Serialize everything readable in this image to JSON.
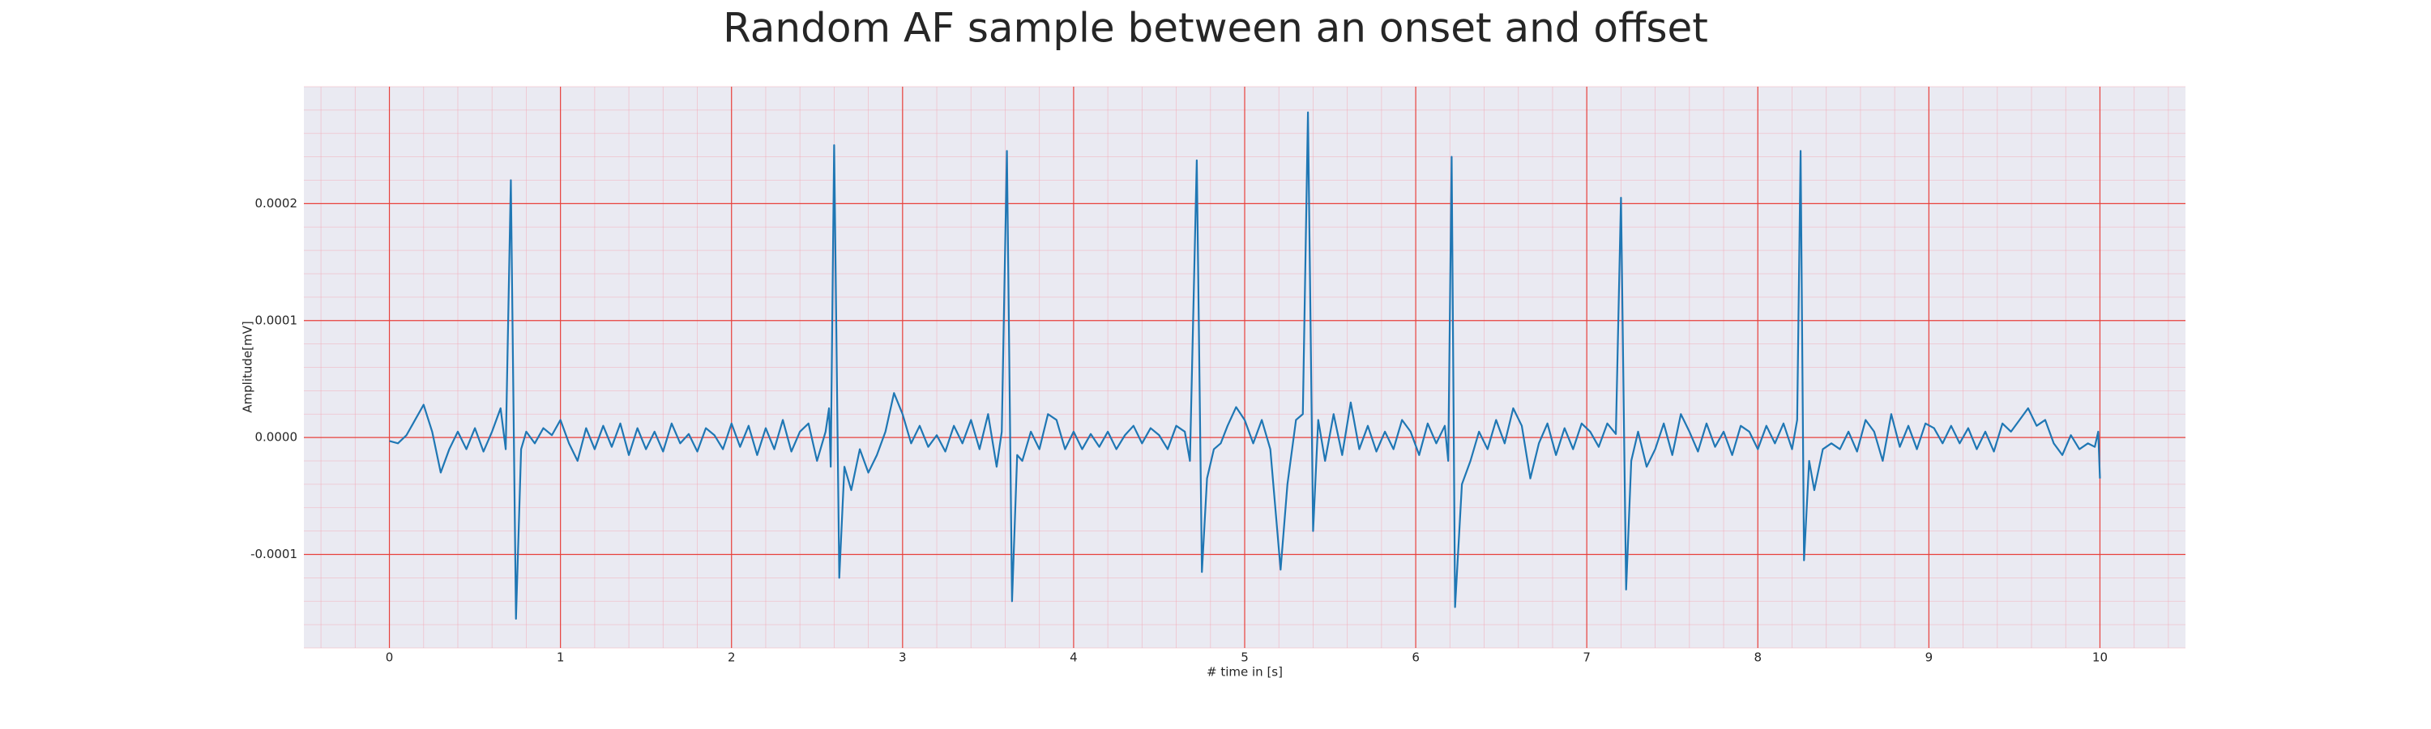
{
  "chart_data": {
    "type": "line",
    "title": "Random AF sample between an onset and offset",
    "xlabel": "# time in [s]",
    "ylabel": "Amplitude[mV]",
    "color": "#1f77b4",
    "grid": true,
    "x": [
      0.0,
      0.05,
      0.1,
      0.15,
      0.2,
      0.25,
      0.3,
      0.35,
      0.4,
      0.45,
      0.5,
      0.55,
      0.6,
      0.65,
      0.68,
      0.71,
      0.74,
      0.77,
      0.8,
      0.85,
      0.9,
      0.95,
      1.0,
      1.05,
      1.1,
      1.15,
      1.2,
      1.25,
      1.3,
      1.35,
      1.4,
      1.45,
      1.5,
      1.55,
      1.6,
      1.65,
      1.7,
      1.75,
      1.8,
      1.85,
      1.9,
      1.95,
      2.0,
      2.05,
      2.1,
      2.15,
      2.2,
      2.25,
      2.3,
      2.35,
      2.4,
      2.45,
      2.5,
      2.55,
      2.57,
      2.58,
      2.6,
      2.63,
      2.66,
      2.7,
      2.75,
      2.8,
      2.85,
      2.9,
      2.95,
      3.0,
      3.05,
      3.1,
      3.15,
      3.2,
      3.25,
      3.3,
      3.35,
      3.4,
      3.45,
      3.5,
      3.55,
      3.58,
      3.61,
      3.64,
      3.67,
      3.7,
      3.75,
      3.8,
      3.85,
      3.9,
      3.95,
      4.0,
      4.05,
      4.1,
      4.15,
      4.2,
      4.25,
      4.3,
      4.35,
      4.4,
      4.45,
      4.5,
      4.55,
      4.6,
      4.65,
      4.68,
      4.72,
      4.75,
      4.78,
      4.82,
      4.86,
      4.9,
      4.95,
      5.0,
      5.05,
      5.1,
      5.15,
      5.21,
      5.25,
      5.3,
      5.34,
      5.37,
      5.4,
      5.43,
      5.47,
      5.52,
      5.57,
      5.62,
      5.67,
      5.72,
      5.77,
      5.82,
      5.87,
      5.92,
      5.97,
      6.02,
      6.07,
      6.12,
      6.17,
      6.19,
      6.21,
      6.23,
      6.27,
      6.32,
      6.37,
      6.42,
      6.47,
      6.52,
      6.57,
      6.62,
      6.67,
      6.72,
      6.77,
      6.82,
      6.87,
      6.92,
      6.97,
      7.02,
      7.07,
      7.12,
      7.17,
      7.2,
      7.23,
      7.26,
      7.3,
      7.35,
      7.4,
      7.45,
      7.5,
      7.55,
      7.6,
      7.65,
      7.7,
      7.75,
      7.8,
      7.85,
      7.9,
      7.95,
      8.0,
      8.05,
      8.1,
      8.15,
      8.2,
      8.23,
      8.25,
      8.27,
      8.3,
      8.33,
      8.38,
      8.43,
      8.48,
      8.53,
      8.58,
      8.63,
      8.68,
      8.73,
      8.78,
      8.83,
      8.88,
      8.93,
      8.98,
      9.03,
      9.08,
      9.13,
      9.18,
      9.23,
      9.28,
      9.33,
      9.38,
      9.43,
      9.48,
      9.53,
      9.58,
      9.63,
      9.68,
      9.73,
      9.78,
      9.83,
      9.88,
      9.93,
      9.97,
      9.99,
      10.0
    ],
    "values": [
      -3e-06,
      -5e-06,
      2e-06,
      1.5e-05,
      2.8e-05,
      5e-06,
      -3e-05,
      -1e-05,
      5e-06,
      -1e-05,
      8e-06,
      -1.2e-05,
      5e-06,
      2.5e-05,
      -1e-05,
      0.00022,
      -0.000155,
      -1e-05,
      5e-06,
      -5e-06,
      8e-06,
      2e-06,
      1.5e-05,
      -5e-06,
      -2e-05,
      8e-06,
      -1e-05,
      1e-05,
      -8e-06,
      1.2e-05,
      -1.5e-05,
      8e-06,
      -1e-05,
      5e-06,
      -1.2e-05,
      1.2e-05,
      -5e-06,
      3e-06,
      -1.2e-05,
      8e-06,
      2e-06,
      -1e-05,
      1.2e-05,
      -8e-06,
      1e-05,
      -1.5e-05,
      8e-06,
      -1e-05,
      1.5e-05,
      -1.2e-05,
      5e-06,
      1.2e-05,
      -2e-05,
      5e-06,
      2.5e-05,
      -2.5e-05,
      0.00025,
      -0.00012,
      -2.5e-05,
      -4.5e-05,
      -1e-05,
      -3e-05,
      -1.5e-05,
      5e-06,
      3.8e-05,
      2e-05,
      -5e-06,
      1e-05,
      -8e-06,
      2e-06,
      -1.2e-05,
      1e-05,
      -5e-06,
      1.5e-05,
      -1e-05,
      2e-05,
      -2.5e-05,
      5e-06,
      0.000245,
      -0.00014,
      -1.5e-05,
      -2e-05,
      5e-06,
      -1e-05,
      2e-05,
      1.5e-05,
      -1e-05,
      5e-06,
      -1e-05,
      3e-06,
      -8e-06,
      5e-06,
      -1e-05,
      2e-06,
      1e-05,
      -5e-06,
      8e-06,
      2e-06,
      -1e-05,
      1e-05,
      5e-06,
      -2e-05,
      0.000237,
      -0.000115,
      -3.5e-05,
      -1e-05,
      -5e-06,
      1e-05,
      2.6e-05,
      1.5e-05,
      -5e-06,
      1.5e-05,
      -1e-05,
      -0.000113,
      -4e-05,
      1.5e-05,
      2e-05,
      0.000278,
      -8e-05,
      1.5e-05,
      -2e-05,
      2e-05,
      -1.5e-05,
      3e-05,
      -1e-05,
      1e-05,
      -1.2e-05,
      5e-06,
      -1e-05,
      1.5e-05,
      5e-06,
      -1.5e-05,
      1.2e-05,
      -5e-06,
      1e-05,
      -2e-05,
      0.00024,
      -0.000145,
      -4e-05,
      -2e-05,
      5e-06,
      -1e-05,
      1.5e-05,
      -5e-06,
      2.5e-05,
      1e-05,
      -3.5e-05,
      -5e-06,
      1.2e-05,
      -1.5e-05,
      8e-06,
      -1e-05,
      1.2e-05,
      5e-06,
      -8e-06,
      1.2e-05,
      3e-06,
      0.000205,
      -0.00013,
      -2e-05,
      5e-06,
      -2.5e-05,
      -1e-05,
      1.2e-05,
      -1.5e-05,
      2e-05,
      5e-06,
      -1.2e-05,
      1.2e-05,
      -8e-06,
      5e-06,
      -1.5e-05,
      1e-05,
      5e-06,
      -1e-05,
      1e-05,
      -5e-06,
      1.2e-05,
      -1e-05,
      1.5e-05,
      0.000245,
      -0.000105,
      -2e-05,
      -4.5e-05,
      -1e-05,
      -5e-06,
      -1e-05,
      5e-06,
      -1.2e-05,
      1.5e-05,
      5e-06,
      -2e-05,
      2e-05,
      -8e-06,
      1e-05,
      -1e-05,
      1.2e-05,
      8e-06,
      -5e-06,
      1e-05,
      -5e-06,
      8e-06,
      -1e-05,
      5e-06,
      -1.2e-05,
      1.2e-05,
      5e-06,
      1.5e-05,
      2.5e-05,
      1e-05,
      1.5e-05,
      -5e-06,
      -1.5e-05,
      2e-06,
      -1e-05,
      -5e-06,
      -8e-06,
      5e-06,
      -3.5e-05
    ],
    "xlim": [
      -0.5,
      10.5
    ],
    "xticks": [
      0,
      1,
      2,
      3,
      4,
      5,
      6,
      7,
      8,
      9,
      10
    ],
    "ylim": [
      -0.00018,
      0.0003
    ],
    "yticks": [
      -0.0001,
      {
        "value": 0,
        "label": "0.0000"
      },
      0.0001,
      0.0002
    ]
  }
}
